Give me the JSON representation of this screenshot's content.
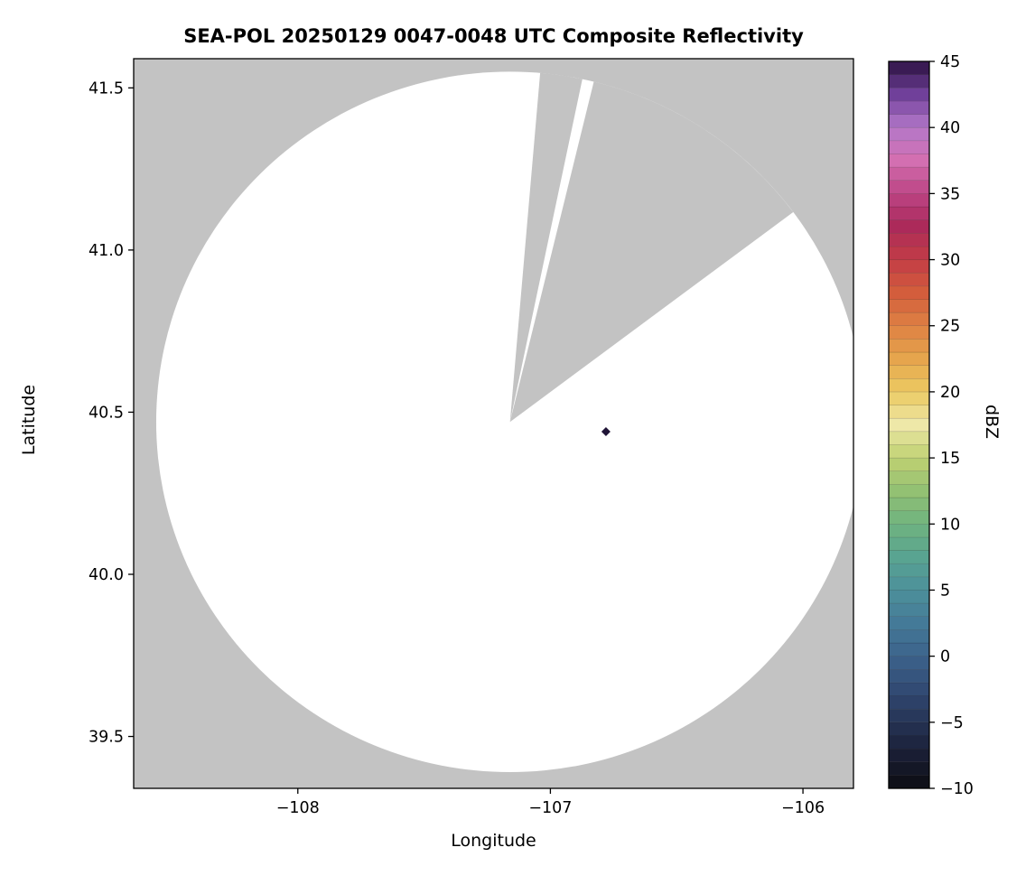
{
  "figure": {
    "background": "#ffffff",
    "nodata_gray": "#c3c3c3",
    "axis_color": "#000000",
    "echo_color": "#201437"
  },
  "chart_data": {
    "type": "radar_composite_reflectivity_map",
    "title": "SEA-POL 20250129 0047-0048 UTC Composite Reflectivity",
    "xlabel": "Longitude",
    "ylabel": "Latitude",
    "xlim": [
      -108.65,
      -105.8
    ],
    "ylim": [
      39.34,
      41.59
    ],
    "x_ticks": [
      -108,
      -107,
      -106
    ],
    "x_tick_labels": [
      "−108",
      "−107",
      "−106"
    ],
    "y_ticks": [
      39.5,
      40.0,
      40.5,
      41.0,
      41.5
    ],
    "y_tick_labels": [
      "39.5",
      "40.0",
      "40.5",
      "41.0",
      "41.5"
    ],
    "grid": false,
    "radar_site": {
      "lon": -107.16,
      "lat": 40.47
    },
    "coverage_radius_deg_lat": 1.08,
    "blocked_sectors_azimuth_deg": [
      [
        4.9,
        11.8
      ],
      [
        13.7,
        53.2
      ]
    ],
    "echo_points": [
      {
        "lon": -106.78,
        "lat": 40.44,
        "dbz_est": 45
      }
    ],
    "colorbar": {
      "label": "dBZ",
      "min": -10,
      "max": 45,
      "tick_step": 5,
      "ticks": [
        45,
        40,
        35,
        30,
        25,
        20,
        15,
        10,
        5,
        0,
        -5,
        -10
      ],
      "tick_labels": [
        "45",
        "40",
        "35",
        "30",
        "25",
        "20",
        "15",
        "10",
        "5",
        "0",
        "−5",
        "−10"
      ],
      "segment_size_dbz": 1,
      "colormap_anchors": [
        {
          "v": -10.0,
          "c": "#0d0d12"
        },
        {
          "v": -7.5,
          "c": "#191d33"
        },
        {
          "v": -5.0,
          "c": "#263355"
        },
        {
          "v": -2.5,
          "c": "#324b74"
        },
        {
          "v": 0.0,
          "c": "#3c638c"
        },
        {
          "v": 2.5,
          "c": "#447a98"
        },
        {
          "v": 5.0,
          "c": "#4d909b"
        },
        {
          "v": 7.5,
          "c": "#59a491"
        },
        {
          "v": 10.0,
          "c": "#6fb37f"
        },
        {
          "v": 12.5,
          "c": "#93c173"
        },
        {
          "v": 15.0,
          "c": "#c0d172"
        },
        {
          "v": 17.5,
          "c": "#eee8a8"
        },
        {
          "v": 20.0,
          "c": "#ecca62"
        },
        {
          "v": 22.5,
          "c": "#e6a54d"
        },
        {
          "v": 25.0,
          "c": "#de8143"
        },
        {
          "v": 27.5,
          "c": "#d35d3c"
        },
        {
          "v": 30.0,
          "c": "#c33d46"
        },
        {
          "v": 32.5,
          "c": "#ac2a5a"
        },
        {
          "v": 35.0,
          "c": "#bc4484"
        },
        {
          "v": 37.5,
          "c": "#d36fb1"
        },
        {
          "v": 40.0,
          "c": "#b478c9"
        },
        {
          "v": 42.5,
          "c": "#70409a"
        },
        {
          "v": 45.0,
          "c": "#2c1242"
        }
      ]
    }
  }
}
